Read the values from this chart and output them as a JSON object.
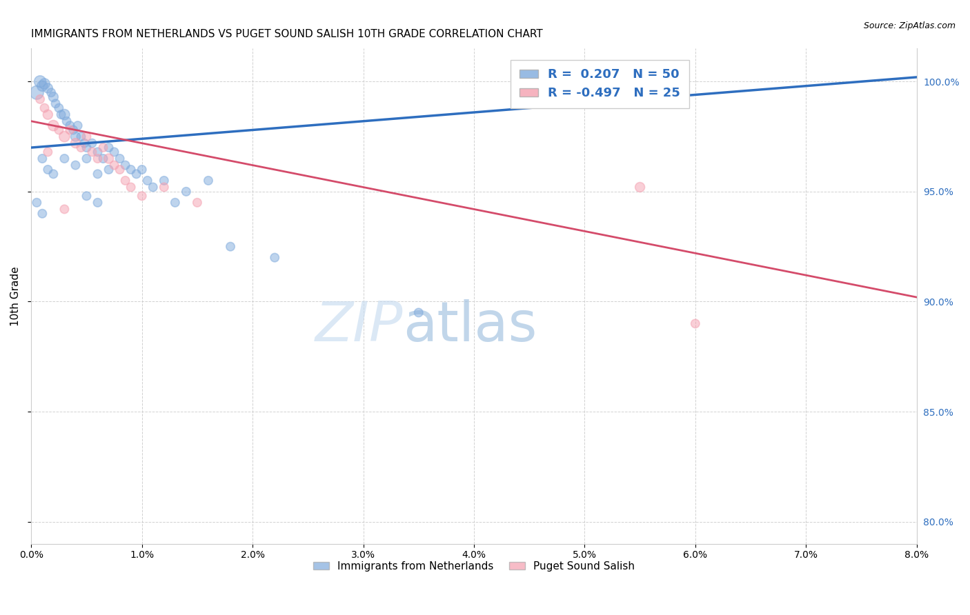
{
  "title": "IMMIGRANTS FROM NETHERLANDS VS PUGET SOUND SALISH 10TH GRADE CORRELATION CHART",
  "source": "Source: ZipAtlas.com",
  "ylabel": "10th Grade",
  "x_ticks": [
    0.0,
    1.0,
    2.0,
    3.0,
    4.0,
    5.0,
    6.0,
    7.0,
    8.0
  ],
  "x_tick_labels": [
    "0.0%",
    "1.0%",
    "2.0%",
    "3.0%",
    "4.0%",
    "5.0%",
    "6.0%",
    "7.0%",
    "8.0%"
  ],
  "y_ticks": [
    80.0,
    85.0,
    90.0,
    95.0,
    100.0
  ],
  "y_tick_labels_right": [
    "80.0%",
    "85.0%",
    "90.0%",
    "95.0%",
    "100.0%"
  ],
  "xlim": [
    0.0,
    8.0
  ],
  "ylim": [
    79.0,
    101.5
  ],
  "blue_color": "#7FAADC",
  "pink_color": "#F4A0B0",
  "blue_line_color": "#2E6EBF",
  "pink_line_color": "#D44B6A",
  "r_blue": 0.207,
  "n_blue": 50,
  "r_pink": -0.497,
  "n_pink": 25,
  "legend_label_blue": "Immigrants from Netherlands",
  "legend_label_pink": "Puget Sound Salish",
  "watermark_zip": "ZIP",
  "watermark_atlas": "atlas",
  "background_color": "#FFFFFF",
  "blue_line_x0": 0.0,
  "blue_line_y0": 97.0,
  "blue_line_x1": 8.0,
  "blue_line_y1": 100.2,
  "pink_line_x0": 0.0,
  "pink_line_y0": 98.2,
  "pink_line_x1": 8.0,
  "pink_line_y1": 90.2,
  "blue_scatter_x": [
    0.05,
    0.08,
    0.1,
    0.12,
    0.15,
    0.18,
    0.2,
    0.22,
    0.25,
    0.27,
    0.3,
    0.32,
    0.35,
    0.38,
    0.4,
    0.42,
    0.45,
    0.48,
    0.5,
    0.55,
    0.6,
    0.65,
    0.7,
    0.75,
    0.8,
    0.85,
    0.9,
    0.95,
    1.0,
    1.05,
    1.1,
    1.2,
    1.3,
    1.4,
    1.6,
    0.1,
    0.15,
    0.2,
    0.3,
    0.4,
    0.5,
    0.6,
    0.7,
    0.5,
    0.6,
    0.05,
    0.1,
    1.8,
    2.2,
    3.5
  ],
  "blue_scatter_y": [
    99.5,
    100.0,
    99.8,
    99.9,
    99.7,
    99.5,
    99.3,
    99.0,
    98.8,
    98.5,
    98.5,
    98.2,
    98.0,
    97.8,
    97.5,
    98.0,
    97.5,
    97.2,
    97.0,
    97.2,
    96.8,
    96.5,
    97.0,
    96.8,
    96.5,
    96.2,
    96.0,
    95.8,
    96.0,
    95.5,
    95.2,
    95.5,
    94.5,
    95.0,
    95.5,
    96.5,
    96.0,
    95.8,
    96.5,
    96.2,
    96.5,
    95.8,
    96.0,
    94.8,
    94.5,
    94.5,
    94.0,
    92.5,
    92.0,
    89.5
  ],
  "blue_scatter_sizes": [
    200,
    150,
    120,
    120,
    100,
    80,
    100,
    80,
    80,
    80,
    120,
    80,
    80,
    80,
    100,
    80,
    80,
    80,
    80,
    80,
    80,
    80,
    80,
    80,
    80,
    80,
    80,
    80,
    80,
    80,
    80,
    80,
    80,
    80,
    80,
    80,
    80,
    80,
    80,
    80,
    80,
    80,
    80,
    80,
    80,
    80,
    80,
    80,
    80,
    80
  ],
  "pink_scatter_x": [
    0.08,
    0.12,
    0.15,
    0.2,
    0.25,
    0.3,
    0.35,
    0.4,
    0.45,
    0.5,
    0.55,
    0.6,
    0.65,
    0.7,
    0.75,
    0.8,
    0.85,
    0.9,
    1.0,
    1.2,
    1.5,
    0.15,
    0.3,
    5.5,
    6.0
  ],
  "pink_scatter_y": [
    99.2,
    98.8,
    98.5,
    98.0,
    97.8,
    97.5,
    97.8,
    97.2,
    97.0,
    97.5,
    96.8,
    96.5,
    97.0,
    96.5,
    96.2,
    96.0,
    95.5,
    95.2,
    94.8,
    95.2,
    94.5,
    96.8,
    94.2,
    95.2,
    89.0
  ],
  "pink_scatter_sizes": [
    80,
    80,
    100,
    120,
    80,
    120,
    80,
    100,
    80,
    80,
    80,
    80,
    80,
    100,
    80,
    80,
    80,
    80,
    80,
    80,
    80,
    80,
    80,
    100,
    80
  ]
}
